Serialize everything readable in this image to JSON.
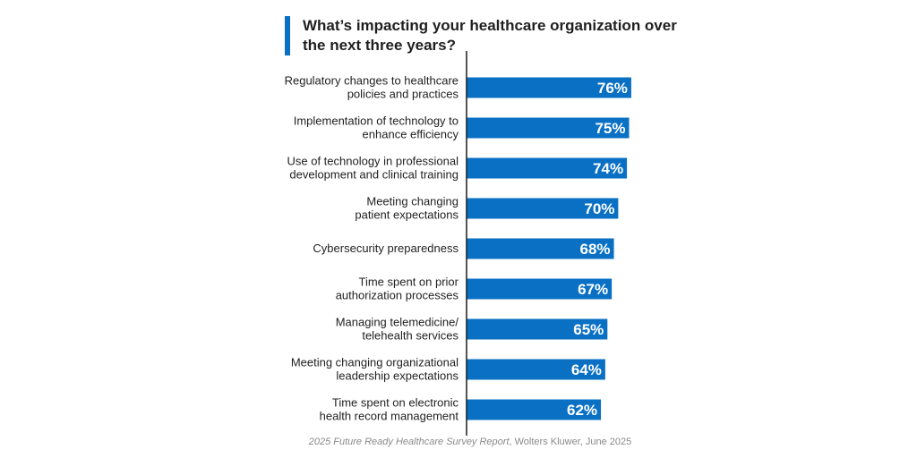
{
  "chart_data": {
    "type": "bar",
    "orientation": "horizontal",
    "title": "What’s impacting your healthcare organization over the next three years?",
    "categories": [
      [
        "Regulatory changes to healthcare",
        "policies and practices"
      ],
      [
        "Implementation of technology to",
        "enhance efficiency"
      ],
      [
        "Use of technology in professional",
        "development and clinical training"
      ],
      [
        "Meeting changing",
        "patient expectations"
      ],
      [
        "Cybersecurity preparedness"
      ],
      [
        "Time spent on prior",
        "authorization processes"
      ],
      [
        "Managing telemedicine/",
        "telehealth services"
      ],
      [
        "Meeting changing organizational",
        "leadership expectations"
      ],
      [
        "Time spent on electronic",
        "health record management"
      ]
    ],
    "values": [
      76,
      75,
      74,
      70,
      68,
      67,
      65,
      64,
      62
    ],
    "value_labels": [
      "76%",
      "75%",
      "74%",
      "70%",
      "68%",
      "67%",
      "65%",
      "64%",
      "62%"
    ],
    "unit": "%",
    "xlim": [
      0,
      100
    ],
    "grid": false,
    "legend": "none",
    "bar_color": "#0a70c4",
    "accent_color": "#0a70c4"
  },
  "source": {
    "title": "2025 Future Ready Healthcare Survey Report",
    "rest": ", Wolters Kluwer, June 2025"
  }
}
